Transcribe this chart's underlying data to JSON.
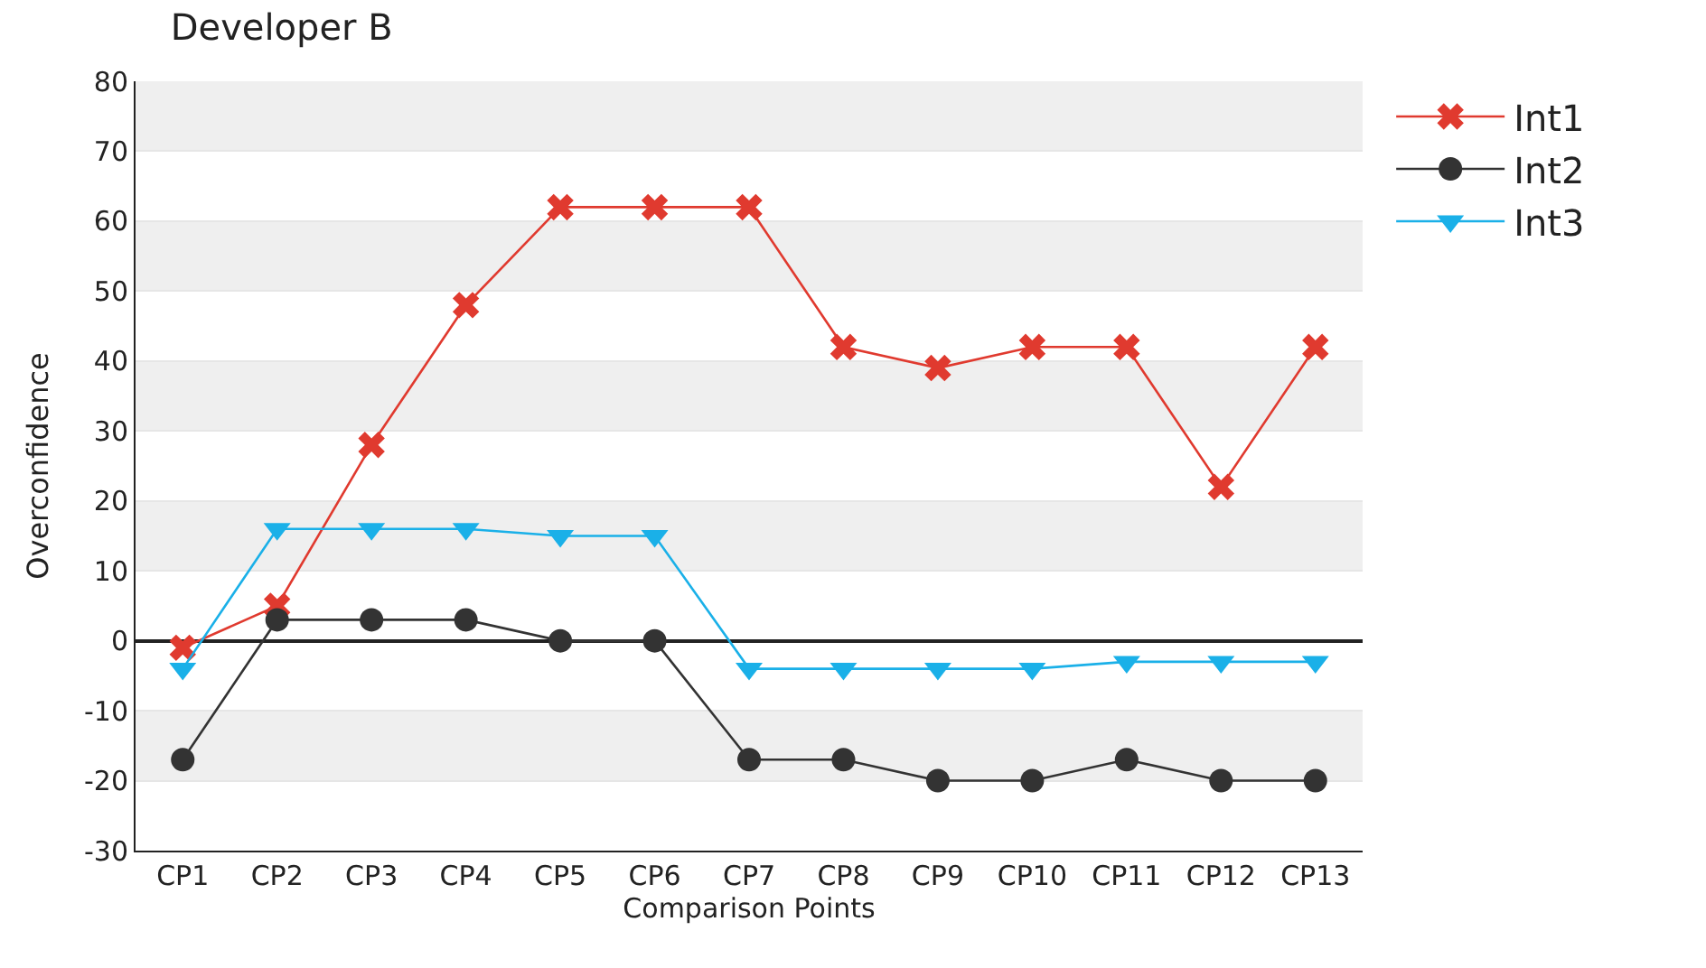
{
  "chart_data": {
    "type": "line",
    "title": "Developer B",
    "xlabel": "Comparison Points",
    "ylabel": "Overconfidence",
    "categories": [
      "CP1",
      "CP2",
      "CP3",
      "CP4",
      "CP5",
      "CP6",
      "CP7",
      "CP8",
      "CP9",
      "CP10",
      "CP11",
      "CP12",
      "CP13"
    ],
    "series": [
      {
        "name": "Int1",
        "color": "#e03a2f",
        "marker": "cross",
        "values": [
          -1,
          5,
          28,
          48,
          62,
          62,
          62,
          42,
          39,
          42,
          42,
          22,
          42
        ]
      },
      {
        "name": "Int2",
        "color": "#333333",
        "marker": "circle",
        "values": [
          -17,
          3,
          3,
          3,
          0,
          0,
          -17,
          -17,
          -20,
          -20,
          -17,
          -20,
          -20
        ]
      },
      {
        "name": "Int3",
        "color": "#1ab0e8",
        "marker": "triangle",
        "values": [
          -4,
          16,
          16,
          16,
          15,
          15,
          -4,
          -4,
          -4,
          -4,
          -3,
          -3,
          -3
        ]
      }
    ],
    "ylim": [
      -30,
      80
    ],
    "yticks": [
      -30,
      -20,
      -10,
      0,
      10,
      20,
      30,
      40,
      50,
      60,
      70,
      80
    ],
    "bands": [
      {
        "axis": "y",
        "from": 70,
        "to": 80,
        "color": "#efefef"
      },
      {
        "axis": "y",
        "from": 50,
        "to": 60,
        "color": "#efefef"
      },
      {
        "axis": "y",
        "from": 30,
        "to": 40,
        "color": "#efefef"
      },
      {
        "axis": "y",
        "from": 10,
        "to": 20,
        "color": "#efefef"
      },
      {
        "axis": "y",
        "from": -20,
        "to": -10,
        "color": "#efefef"
      }
    ],
    "grid": "y",
    "legend": "top right",
    "line_style": "solid"
  }
}
